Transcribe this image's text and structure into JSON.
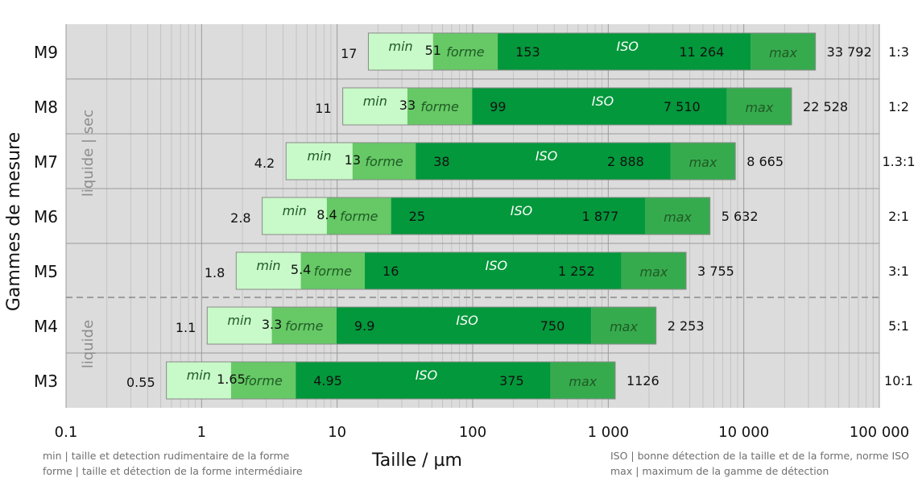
{
  "chart_data": {
    "type": "bar",
    "xscale": "log",
    "xlim": [
      0.1,
      100000
    ],
    "xlabel": "Taille / µm",
    "ylabel": "Gammes de mesure",
    "grid": true,
    "x_tick_labels": [
      "0.1",
      "1",
      "10",
      "100",
      "1 000",
      "10 000",
      "100 000"
    ],
    "x_ticks": [
      0.1,
      1,
      10,
      100,
      1000,
      10000,
      100000
    ],
    "segment_labels": [
      "min",
      "forme",
      "ISO",
      "max"
    ],
    "segment_colors": [
      "#c8f9c8",
      "#66c966",
      "#03983b",
      "#36ab4e"
    ],
    "group_labels": [
      {
        "text": "liquide | sec",
        "rows": [
          "M9",
          "M8",
          "M7",
          "M6",
          "M5"
        ]
      },
      {
        "text": "liquide",
        "rows": [
          "M4",
          "M3"
        ]
      }
    ],
    "ranges": [
      {
        "name": "M9",
        "min": 17,
        "forme": 51,
        "iso_start": 153,
        "iso_end": 11264,
        "max": 33792,
        "labels": [
          "17",
          "51",
          "153",
          "11 264",
          "33 792"
        ],
        "ratio": "1:3"
      },
      {
        "name": "M8",
        "min": 11,
        "forme": 33,
        "iso_start": 99,
        "iso_end": 7510,
        "max": 22528,
        "labels": [
          "11",
          "33",
          "99",
          "7 510",
          "22 528"
        ],
        "ratio": "1:2"
      },
      {
        "name": "M7",
        "min": 4.2,
        "forme": 13,
        "iso_start": 38,
        "iso_end": 2888,
        "max": 8665,
        "labels": [
          "4.2",
          "13",
          "38",
          "2 888",
          "8 665"
        ],
        "ratio": "1.3:1"
      },
      {
        "name": "M6",
        "min": 2.8,
        "forme": 8.4,
        "iso_start": 25,
        "iso_end": 1877,
        "max": 5632,
        "labels": [
          "2.8",
          "8.4",
          "25",
          "1 877",
          "5 632"
        ],
        "ratio": "2:1"
      },
      {
        "name": "M5",
        "min": 1.8,
        "forme": 5.4,
        "iso_start": 16,
        "iso_end": 1252,
        "max": 3755,
        "labels": [
          "1.8",
          "5.4",
          "16",
          "1 252",
          "3 755"
        ],
        "ratio": "3:1"
      },
      {
        "name": "M4",
        "min": 1.1,
        "forme": 3.3,
        "iso_start": 9.9,
        "iso_end": 750,
        "max": 2253,
        "labels": [
          "1.1",
          "3.3",
          "9.9",
          "750",
          "2 253"
        ],
        "ratio": "5:1"
      },
      {
        "name": "M3",
        "min": 0.55,
        "forme": 1.65,
        "iso_start": 4.95,
        "iso_end": 375,
        "max": 1126,
        "labels": [
          "0.55",
          "1.65",
          "4.95",
          "375",
          "1126"
        ],
        "ratio": "10:1"
      }
    ]
  },
  "notes": {
    "min": "min | taille et detection rudimentaire de la forme",
    "forme": "forme | taille et détection de la forme intermédiaire",
    "iso": "ISO | bonne détection de la taille et de la forme, norme ISO",
    "max": "max | maximum de la gamme de détection"
  }
}
